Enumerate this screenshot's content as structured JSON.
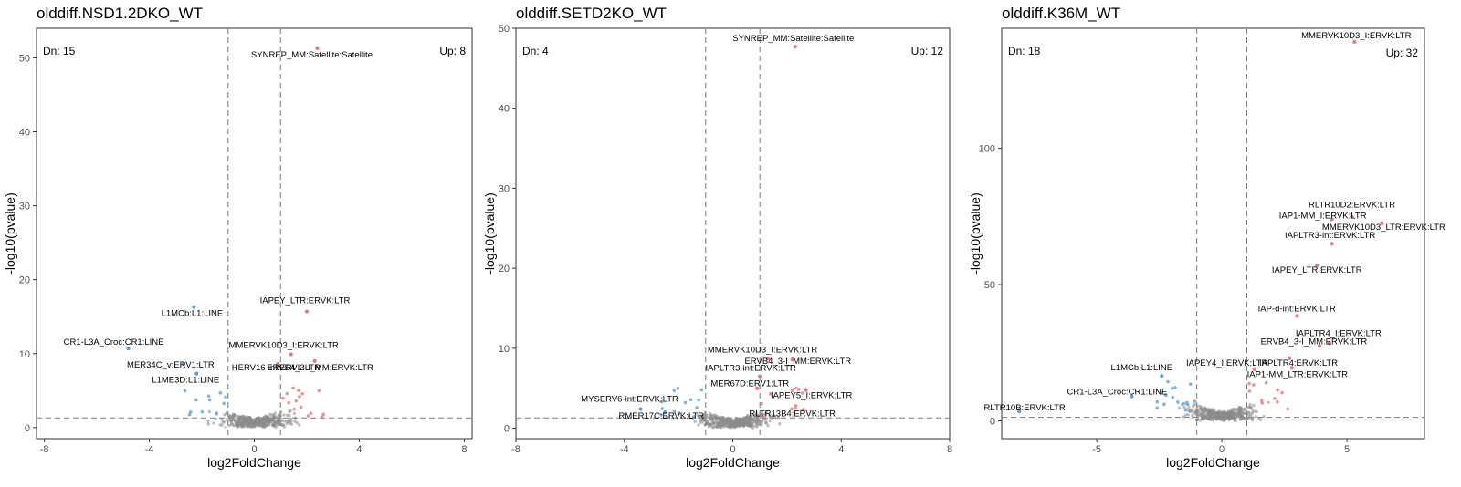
{
  "chart_data": [
    {
      "type": "scatter",
      "title": "olddiff.NSD1.2DKO_WT",
      "xlabel": "log2FoldChange",
      "ylabel": "-log10(pvalue)",
      "xlim": [
        -8.3,
        8.3
      ],
      "ylim": [
        -1.5,
        54
      ],
      "xticks": [
        -8,
        -4,
        0,
        4,
        8
      ],
      "yticks": [
        0,
        10,
        20,
        30,
        40,
        50
      ],
      "vlines": [
        -1,
        1
      ],
      "hline": 1.3,
      "counts": {
        "down": "Dn: 15",
        "up": "Up: 8"
      },
      "labels": [
        {
          "text": "SYNREP_MM:Satellite:Satellite",
          "x": 2.4,
          "y": 51.3,
          "dir": "up"
        },
        {
          "text": "IAPEY_LTR:ERVK:LTR",
          "x": 2.0,
          "y": 15.7,
          "dir": "up"
        },
        {
          "text": "L1MCb:L1:LINE",
          "x": -2.3,
          "y": 16.3,
          "dir": "down"
        },
        {
          "text": "CR1-L3A_Croc:CR1:LINE",
          "x": -4.8,
          "y": 10.7,
          "dir": "down"
        },
        {
          "text": "MMERVK10D3_I:ERVK:LTR",
          "x": 1.4,
          "y": 9.9,
          "dir": "up"
        },
        {
          "text": "MER34C_v:ERV1:LTR",
          "x": -2.7,
          "y": 8.6,
          "dir": "down"
        },
        {
          "text": "HERV16-int:ERVL:LTR",
          "x": 0.9,
          "y": 8.6,
          "dir": "up"
        },
        {
          "text": "ERVB4_3-I_MM:ERVK:LTR",
          "x": 2.3,
          "y": 9.0,
          "dir": "up"
        },
        {
          "text": "L1ME3D:L1:LINE",
          "x": -2.2,
          "y": 7.3,
          "dir": "down"
        }
      ]
    },
    {
      "type": "scatter",
      "title": "olddiff.SETD2KO_WT",
      "xlabel": "log2FoldChange",
      "ylabel": "-log10(pvalue)",
      "xlim": [
        -8.0,
        8.0
      ],
      "ylim": [
        -1.3,
        50.0
      ],
      "xticks": [
        -8,
        -4,
        0,
        4,
        8
      ],
      "yticks": [
        0,
        10,
        20,
        30,
        40,
        50
      ],
      "vlines": [
        -1,
        1
      ],
      "hline": 1.3,
      "counts": {
        "down": "Dn: 4",
        "up": "Up: 12"
      },
      "labels": [
        {
          "text": "SYNREP_MM:Satellite:Satellite",
          "x": 2.3,
          "y": 47.7,
          "dir": "up"
        },
        {
          "text": "MMERVK10D3_I:ERVK:LTR",
          "x": 1.3,
          "y": 8.7,
          "dir": "up"
        },
        {
          "text": "ERVB4_3-I_MM:ERVK:LTR",
          "x": 2.2,
          "y": 8.6,
          "dir": "up"
        },
        {
          "text": "IAPLTR3-int:ERVK:LTR",
          "x": 1.0,
          "y": 6.5,
          "dir": "up"
        },
        {
          "text": "MER67D:ERV1:LTR",
          "x": 0.9,
          "y": 5.0,
          "dir": "up"
        },
        {
          "text": "IAPEY5_I:ERVK:LTR",
          "x": 2.7,
          "y": 4.8,
          "dir": "up"
        },
        {
          "text": "MYSERV6-int:ERVK:LTR",
          "x": -3.4,
          "y": 2.4,
          "dir": "down"
        },
        {
          "text": "RMER17C:ERVK:LTR",
          "x": -2.5,
          "y": 2.0,
          "dir": "down"
        },
        {
          "text": "RLTR13B4:ERVK:LTR",
          "x": 2.6,
          "y": 2.3,
          "dir": "up"
        }
      ]
    },
    {
      "type": "scatter",
      "title": "olddiff.K36M_WT",
      "xlabel": "log2FoldChange",
      "ylabel": "-log10(pvalue)",
      "xlim": [
        -8.8,
        8.1
      ],
      "ylim": [
        -6.5,
        144
      ],
      "xticks": [
        -5,
        0,
        5
      ],
      "yticks": [
        0,
        50,
        100
      ],
      "vlines": [
        -1,
        1
      ],
      "hline": 1.3,
      "counts": {
        "down": "Dn: 18",
        "up": "Up: 32"
      },
      "labels": [
        {
          "text": "MMERVK10D3_I:ERVK:LTR",
          "x": 5.3,
          "y": 139.0,
          "dir": "up"
        },
        {
          "text": "RLTR10D2:ERVK:LTR",
          "x": 5.2,
          "y": 75.0,
          "dir": "up"
        },
        {
          "text": "IAP1-MM_I:ERVK:LTR",
          "x": 4.4,
          "y": 74.0,
          "dir": "up"
        },
        {
          "text": "MMERVK10D3_LTR:ERVK:LTR",
          "x": 6.4,
          "y": 72.5,
          "dir": "up"
        },
        {
          "text": "IAPLTR3-int:ERVK:LTR",
          "x": 4.4,
          "y": 65.0,
          "dir": "up"
        },
        {
          "text": "IAPEY_LTR:ERVK:LTR",
          "x": 3.8,
          "y": 57.0,
          "dir": "up"
        },
        {
          "text": "IAP-d-int:ERVK:LTR",
          "x": 3.0,
          "y": 38.5,
          "dir": "up"
        },
        {
          "text": "IAPLTR4_I:ERVK:LTR",
          "x": 4.3,
          "y": 28.5,
          "dir": "up"
        },
        {
          "text": "ERVB4_3-I_MM:ERVK:LTR",
          "x": 3.9,
          "y": 27.5,
          "dir": "up"
        },
        {
          "text": "IAPLTR4:ERVK:LTR",
          "x": 2.7,
          "y": 23.0,
          "dir": "up"
        },
        {
          "text": "IAPEY4_I:ERVK:LTR",
          "x": 1.3,
          "y": 19.0,
          "dir": "up"
        },
        {
          "text": "IAP1-MM_LTR:ERVK:LTR",
          "x": 2.8,
          "y": 19.5,
          "dir": "up"
        },
        {
          "text": "L1MCb:L1:LINE",
          "x": -2.4,
          "y": 16.5,
          "dir": "down"
        },
        {
          "text": "CR1-L3A_Croc:CR1:LINE",
          "x": -3.6,
          "y": 9.0,
          "dir": "down"
        },
        {
          "text": "RLTR10B:ERVK:LTR",
          "x": -8.1,
          "y": 3.5,
          "dir": "down"
        }
      ]
    }
  ],
  "colors": {
    "up": "#e8787b",
    "down": "#5ba3d6",
    "ns": "#8a8a8a",
    "guide": "#7a7a7a",
    "frame": "#333333"
  }
}
